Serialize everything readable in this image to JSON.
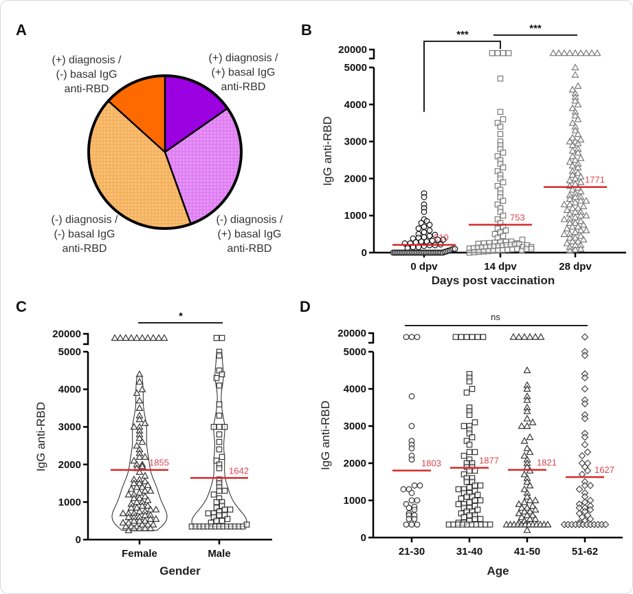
{
  "chart_data": [
    {
      "panel": "A",
      "type": "pie",
      "slices": [
        {
          "label_lines": [
            "(+) diagnosis /",
            "(+) basal IgG",
            "anti-RBD"
          ],
          "value": 15.3,
          "color": "#9a00e0",
          "pattern": false
        },
        {
          "label_lines": [
            "(-) diagnosis /",
            "(+) basal IgG",
            "anti-RBD"
          ],
          "value": 29.2,
          "color": "#e283f5",
          "pattern": true
        },
        {
          "label_lines": [
            "(-) diagnosis /",
            "(-) basal IgG",
            "anti-RBD"
          ],
          "value": 42.2,
          "color": "#f7b562",
          "pattern": true
        },
        {
          "label_lines": [
            "(+) diagnosis /",
            "(-) basal IgG",
            "anti-RBD"
          ],
          "value": 13.3,
          "color": "#ff6a00",
          "pattern": false
        }
      ]
    },
    {
      "panel": "B",
      "type": "scatter",
      "ylabel": "IgG anti-RBD",
      "xlabel": "Days post vaccination",
      "categories": [
        "0 dpv",
        "14 dpv",
        "28 dpv"
      ],
      "y_ticks": [
        0,
        1000,
        2000,
        3000,
        4000,
        5000,
        20000
      ],
      "y_axis_break": [
        5000,
        20000
      ],
      "median_color": "#d42a2a",
      "groups": [
        {
          "category": "0 dpv",
          "marker": "circle",
          "color": "#111111",
          "median": 210,
          "median_label": "210",
          "values": [
            0,
            0,
            0,
            0,
            0,
            0,
            0,
            0,
            0,
            0,
            0,
            0,
            0,
            0,
            0,
            0,
            0,
            0,
            0,
            0,
            0,
            0,
            0,
            0,
            0,
            0,
            0,
            0,
            0,
            0,
            20,
            30,
            50,
            60,
            80,
            100,
            100,
            120,
            150,
            150,
            180,
            200,
            200,
            220,
            250,
            250,
            280,
            300,
            300,
            320,
            350,
            350,
            380,
            400,
            420,
            450,
            480,
            500,
            550,
            600,
            650,
            700,
            750,
            800,
            850,
            900,
            1100,
            1200,
            1300,
            1500,
            1600
          ]
        },
        {
          "category": "14 dpv",
          "marker": "square",
          "color": "#777777",
          "median": 753,
          "median_label": "753",
          "values": [
            0,
            10,
            20,
            30,
            40,
            50,
            60,
            70,
            80,
            90,
            100,
            110,
            120,
            130,
            140,
            150,
            160,
            170,
            180,
            190,
            200,
            210,
            220,
            230,
            240,
            250,
            260,
            270,
            280,
            290,
            300,
            50,
            100,
            150,
            200,
            250,
            100,
            150,
            350,
            400,
            450,
            500,
            550,
            600,
            650,
            700,
            800,
            900,
            1000,
            1100,
            1200,
            1300,
            1400,
            1500,
            1600,
            1700,
            1800,
            1900,
            2000,
            2100,
            2200,
            2300,
            2400,
            2500,
            2600,
            2700,
            2800,
            2900,
            3000,
            3200,
            3400,
            3500,
            3600,
            3800,
            4700,
            18000,
            18000,
            18000,
            18000
          ]
        },
        {
          "category": "28 dpv",
          "marker": "triangle",
          "color": "#777777",
          "median": 1771,
          "median_label": "1771",
          "values": [
            50,
            80,
            100,
            150,
            200,
            200,
            250,
            300,
            300,
            350,
            400,
            400,
            450,
            500,
            500,
            550,
            600,
            600,
            650,
            700,
            700,
            750,
            800,
            800,
            850,
            900,
            900,
            950,
            1000,
            1000,
            1050,
            1100,
            1100,
            1150,
            1200,
            1200,
            1250,
            1300,
            1300,
            1350,
            1400,
            1400,
            1450,
            1500,
            1500,
            1550,
            1600,
            1650,
            1700,
            1750,
            1800,
            1850,
            1900,
            1950,
            2000,
            2050,
            2100,
            2150,
            2200,
            2300,
            2350,
            2400,
            2450,
            2500,
            2550,
            2600,
            2700,
            2750,
            2800,
            2900,
            2950,
            3000,
            3000,
            3050,
            3100,
            3200,
            3300,
            3400,
            3500,
            3600,
            3700,
            3800,
            3900,
            4000,
            4100,
            4200,
            4300,
            4400,
            4500,
            4800,
            5000,
            18000,
            18000,
            18000,
            18000,
            18000,
            18000,
            18000,
            18000,
            18000
          ]
        }
      ],
      "significance": [
        {
          "from": "0 dpv",
          "to": "14 dpv",
          "label": "***"
        },
        {
          "from": "14 dpv",
          "to": "28 dpv",
          "label": "***"
        }
      ]
    },
    {
      "panel": "C",
      "type": "scatter",
      "subtype": "violin",
      "ylabel": "IgG anti-RBD",
      "xlabel": "Gender",
      "categories": [
        "Female",
        "Male"
      ],
      "y_ticks": [
        0,
        1000,
        2000,
        3000,
        4000,
        5000,
        20000
      ],
      "y_axis_break": [
        5000,
        20000
      ],
      "median_color": "#d42a2a",
      "groups": [
        {
          "category": "Female",
          "marker": "triangle",
          "color": "#333333",
          "median": 1855,
          "median_label": "1855",
          "values": [
            250,
            300,
            300,
            300,
            300,
            350,
            350,
            350,
            400,
            400,
            400,
            450,
            450,
            500,
            500,
            500,
            550,
            550,
            600,
            600,
            600,
            650,
            650,
            700,
            700,
            700,
            750,
            750,
            800,
            800,
            850,
            850,
            900,
            900,
            950,
            1000,
            1000,
            1050,
            1100,
            1100,
            1150,
            1200,
            1200,
            1250,
            1300,
            1300,
            1350,
            1400,
            1400,
            1450,
            1500,
            1500,
            1550,
            1600,
            1600,
            1700,
            1800,
            1900,
            1950,
            2000,
            2000,
            2100,
            2200,
            2200,
            2300,
            2400,
            2500,
            2600,
            2700,
            2800,
            2900,
            3000,
            3000,
            3100,
            3200,
            3300,
            3500,
            3700,
            3900,
            4000,
            4200,
            4400,
            18000,
            18000,
            18000,
            18000,
            18000,
            18000,
            18000,
            18000,
            18000,
            18000
          ]
        },
        {
          "category": "Male",
          "marker": "square",
          "color": "#333333",
          "median": 1642,
          "median_label": "1642",
          "values": [
            350,
            350,
            350,
            350,
            350,
            350,
            350,
            350,
            350,
            350,
            350,
            350,
            350,
            350,
            400,
            450,
            500,
            500,
            550,
            600,
            650,
            650,
            700,
            700,
            750,
            800,
            800,
            850,
            900,
            1000,
            1000,
            1100,
            1200,
            1300,
            1300,
            1400,
            1500,
            1600,
            1900,
            2000,
            2100,
            2200,
            2400,
            2600,
            2800,
            3000,
            3000,
            3000,
            3300,
            3600,
            4100,
            4300,
            4400,
            4500,
            4900,
            5000,
            18000,
            18000
          ]
        }
      ],
      "significance": [
        {
          "from": "Female",
          "to": "Male",
          "label": "*"
        }
      ]
    },
    {
      "panel": "D",
      "type": "scatter",
      "ylabel": "IgG anti-RBD",
      "xlabel": "Age",
      "categories": [
        "21-30",
        "31-40",
        "41-50",
        "51-62"
      ],
      "y_ticks": [
        0,
        1000,
        2000,
        3000,
        4000,
        5000,
        20000
      ],
      "y_axis_break": [
        5000,
        20000
      ],
      "median_color": "#d42a2a",
      "groups": [
        {
          "category": "21-30",
          "marker": "circle",
          "color": "#333333",
          "median": 1803,
          "median_label": "1803",
          "values": [
            350,
            350,
            350,
            500,
            500,
            600,
            600,
            650,
            750,
            800,
            830,
            900,
            1000,
            1000,
            1200,
            1300,
            1300,
            1400,
            1400,
            2100,
            2200,
            2400,
            2500,
            2600,
            3000,
            3800,
            18000,
            18000,
            18000
          ]
        },
        {
          "category": "31-40",
          "marker": "square",
          "color": "#333333",
          "median": 1877,
          "median_label": "1877",
          "values": [
            350,
            350,
            350,
            350,
            350,
            350,
            350,
            350,
            350,
            350,
            400,
            400,
            450,
            500,
            500,
            550,
            600,
            600,
            650,
            700,
            700,
            750,
            800,
            800,
            850,
            900,
            900,
            950,
            1000,
            1000,
            1050,
            1100,
            1100,
            1150,
            1200,
            1200,
            1250,
            1300,
            1300,
            1350,
            1400,
            1400,
            1500,
            1500,
            1600,
            1600,
            1700,
            1800,
            1800,
            1900,
            1900,
            2000,
            2000,
            2100,
            2200,
            2300,
            2300,
            2500,
            2600,
            2700,
            2800,
            2900,
            3000,
            3000,
            3100,
            3300,
            3400,
            3500,
            3900,
            4000,
            4200,
            4300,
            4400,
            18000,
            18000,
            18000,
            18000,
            18000,
            18000
          ]
        },
        {
          "category": "41-50",
          "marker": "triangle",
          "color": "#333333",
          "median": 1821,
          "median_label": "1821",
          "values": [
            200,
            350,
            350,
            350,
            350,
            350,
            350,
            350,
            350,
            350,
            350,
            350,
            350,
            400,
            450,
            500,
            500,
            550,
            600,
            600,
            650,
            700,
            700,
            750,
            800,
            800,
            850,
            900,
            950,
            1000,
            1000,
            1100,
            1200,
            1300,
            1400,
            1500,
            1600,
            1700,
            1800,
            1900,
            2000,
            2100,
            2200,
            2300,
            2400,
            2600,
            2700,
            3000,
            3000,
            3100,
            3200,
            3400,
            3500,
            3700,
            3800,
            4000,
            4100,
            4500,
            18000,
            18000,
            18000,
            18000,
            18000,
            18000
          ]
        },
        {
          "category": "51-62",
          "marker": "diamond",
          "color": "#444444",
          "median": 1627,
          "median_label": "1627",
          "values": [
            350,
            350,
            350,
            350,
            350,
            350,
            350,
            350,
            350,
            350,
            350,
            350,
            400,
            450,
            500,
            550,
            600,
            650,
            700,
            750,
            800,
            800,
            850,
            900,
            950,
            1000,
            1100,
            1200,
            1300,
            1400,
            1400,
            1500,
            1700,
            1800,
            1900,
            2000,
            2000,
            2200,
            2300,
            2500,
            2700,
            2800,
            3200,
            3300,
            3600,
            3700,
            4000,
            4300,
            4400,
            4900,
            5000,
            18000
          ]
        }
      ],
      "significance": [
        {
          "from": "21-30",
          "to": "51-62",
          "label": "ns"
        }
      ]
    }
  ]
}
